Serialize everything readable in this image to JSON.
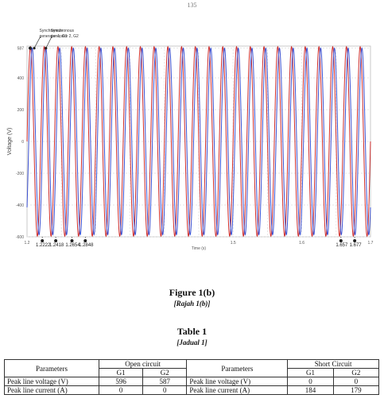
{
  "page": {
    "number": "135"
  },
  "chart_data": {
    "type": "line",
    "xlabel": "Time (s)",
    "ylabel": "Voltage (V)",
    "xlim": [
      1.2,
      1.7
    ],
    "ylim": [
      -600,
      600
    ],
    "grid": true,
    "x_ticks": [
      "1.2",
      "1.5",
      "1.6",
      "1.7"
    ],
    "y_ticks": [
      "587",
      "400",
      "200",
      "0",
      "-200",
      "-400",
      "-600"
    ],
    "series": [
      {
        "name": "Synchronous generator 1, G1",
        "color": "#cc2b2b",
        "peak": 596,
        "phase_deg": 0
      },
      {
        "name": "Synchronous generator 2, G2",
        "color": "#3a4fd0",
        "peak": 587,
        "phase_deg": -45
      }
    ],
    "frequency_hz": 50,
    "markers": [
      {
        "label": "1.2222",
        "x": 1.2222
      },
      {
        "label": "1.2418",
        "x": 1.2418
      },
      {
        "label": "1.2654",
        "x": 1.2654
      },
      {
        "label": "1.2848",
        "x": 1.2848
      },
      {
        "label": "1.657",
        "x": 1.657
      },
      {
        "label": "1.677",
        "x": 1.677
      }
    ],
    "annotations": [
      {
        "text_line1": "Synchronous",
        "text_line2": "generator 1, G1"
      },
      {
        "text_line1": "Synchronous",
        "text_line2": "generator 2, G2"
      }
    ]
  },
  "figure": {
    "caption": "Figure 1(b)",
    "caption_alt": "[Rajah 1(b)]"
  },
  "table": {
    "caption": "Table 1",
    "caption_alt": "[Jadual 1]",
    "header": {
      "parameters": "Parameters",
      "open_circuit": "Open circuit",
      "short_circuit": "Short Circuit",
      "g1": "G1",
      "g2": "G2"
    },
    "rows": [
      {
        "oc_param": "Peak line voltage (V)",
        "oc_g1": "596",
        "oc_g2": "587",
        "sc_param": "Peak line voltage (V)",
        "sc_g1": "0",
        "sc_g2": "0"
      },
      {
        "oc_param": "Peak line current (A)",
        "oc_g1": "0",
        "oc_g2": "0",
        "sc_param": "Peak line current (A)",
        "sc_g1": "184",
        "sc_g2": "179"
      }
    ]
  }
}
